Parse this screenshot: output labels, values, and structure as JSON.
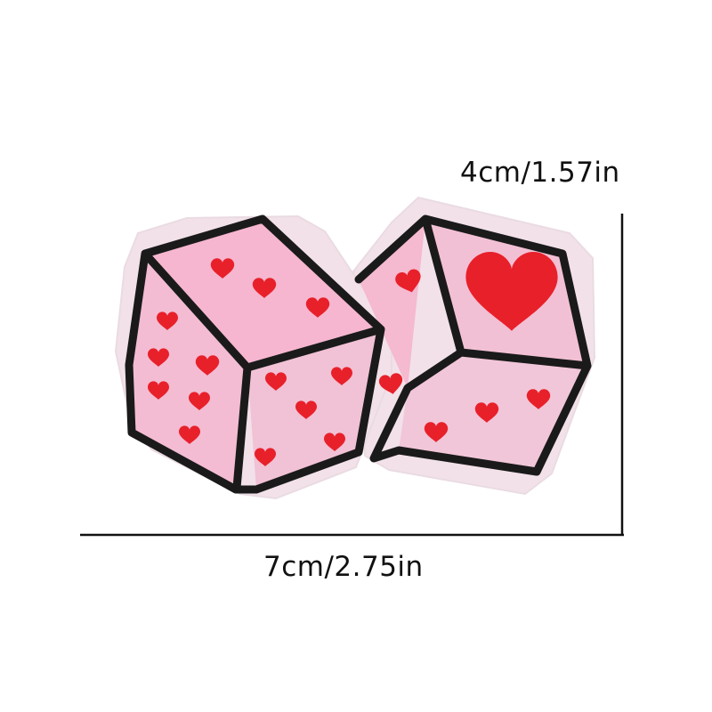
{
  "dimensions": {
    "height_label": "4cm/1.57in",
    "width_label": "7cm/2.75in"
  },
  "colors": {
    "background": "#ffffff",
    "patch_border": "#f0dde6",
    "die_outline": "#1a1a1a",
    "face_top": "#f6b6cf",
    "face_left": "#f3bcd3",
    "face_right": "#f1c1d5",
    "heart": "#e8202a",
    "measure_line": "#111111"
  },
  "icons": [
    "heart-icon",
    "die-icon"
  ]
}
